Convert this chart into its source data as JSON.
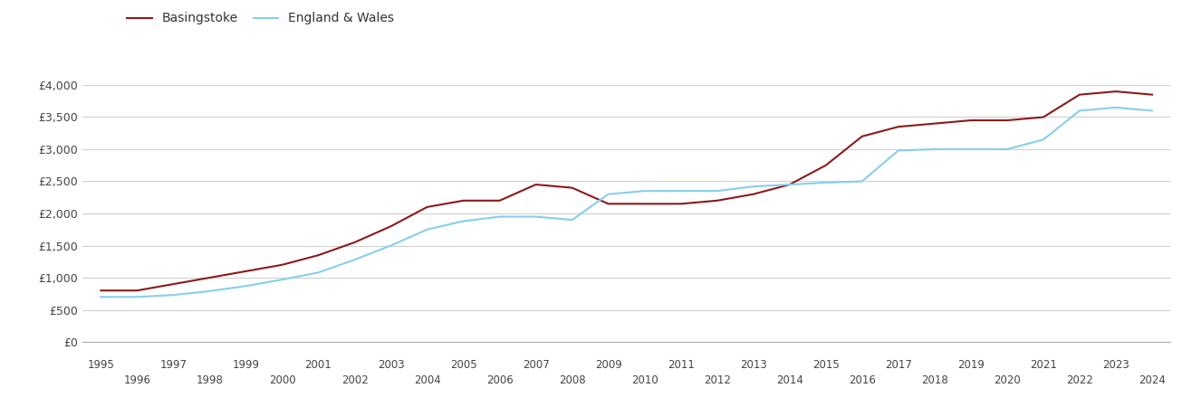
{
  "years": [
    1995,
    1996,
    1997,
    1998,
    1999,
    2000,
    2001,
    2002,
    2003,
    2004,
    2005,
    2006,
    2007,
    2008,
    2009,
    2010,
    2011,
    2012,
    2013,
    2014,
    2015,
    2016,
    2017,
    2018,
    2019,
    2020,
    2021,
    2022,
    2023,
    2024
  ],
  "basingstoke": [
    800,
    800,
    900,
    1000,
    1100,
    1200,
    1350,
    1550,
    1800,
    2100,
    2200,
    2200,
    2450,
    2400,
    2150,
    2150,
    2150,
    2200,
    2300,
    2450,
    2750,
    3200,
    3350,
    3400,
    3450,
    3450,
    3500,
    3850,
    3900,
    3850
  ],
  "england_wales": [
    700,
    700,
    730,
    790,
    870,
    970,
    1080,
    1280,
    1500,
    1750,
    1880,
    1950,
    1950,
    1900,
    2300,
    2350,
    2350,
    2350,
    2420,
    2450,
    2480,
    2500,
    2980,
    3000,
    3000,
    3000,
    3150,
    3600,
    3650,
    3600
  ],
  "basingstoke_color": "#8B1A1A",
  "england_wales_color": "#87CEEB",
  "background_color": "#ffffff",
  "grid_color": "#d0d0d0",
  "ylim": [
    0,
    4500
  ],
  "yticks": [
    0,
    500,
    1000,
    1500,
    2000,
    2500,
    3000,
    3500,
    4000
  ],
  "legend_labels": [
    "Basingstoke",
    "England & Wales"
  ],
  "figsize": [
    13.05,
    4.5
  ],
  "dpi": 100
}
